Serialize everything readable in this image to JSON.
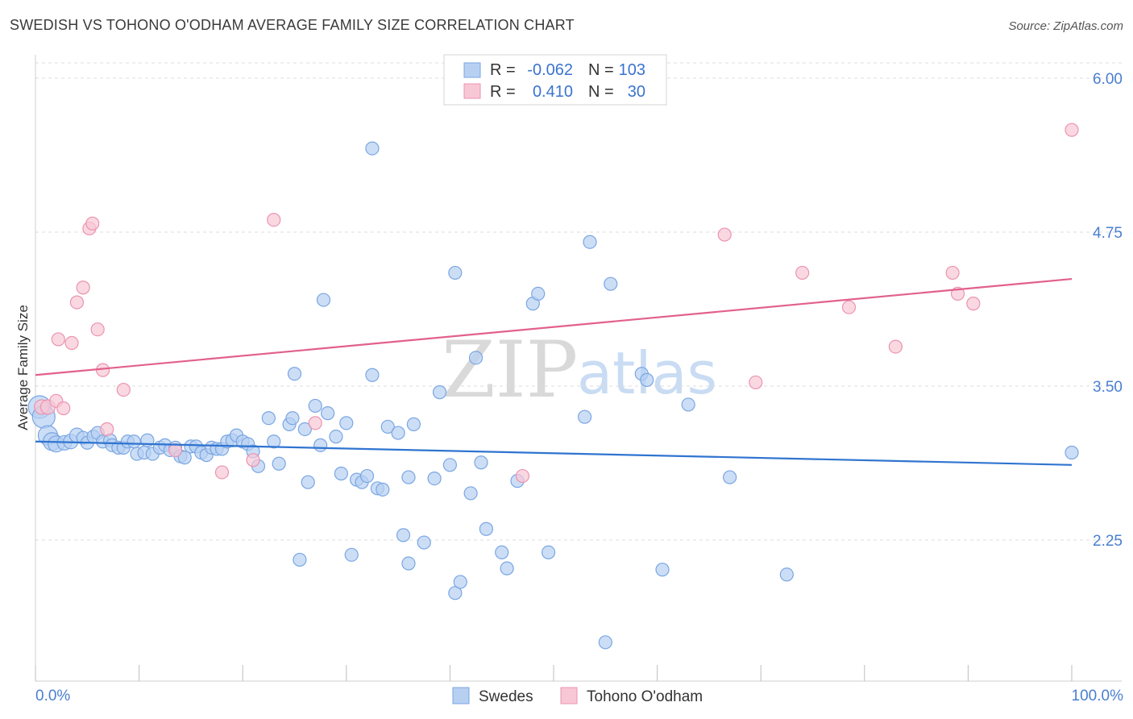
{
  "header": {
    "title": "SWEDISH VS TOHONO O'ODHAM AVERAGE FAMILY SIZE CORRELATION CHART",
    "source": "Source: ZipAtlas.com"
  },
  "colors": {
    "blue_fill": "#b7d0f2",
    "blue_stroke": "#7aa6e2",
    "blue_line": "#2f74d0",
    "pink_fill": "#f8c7d6",
    "pink_stroke": "#eb93b0",
    "pink_line": "#e2608d",
    "grid": "#dddddd",
    "tick_label": "#4a7fd0"
  },
  "legend": {
    "rows": [
      {
        "r_label": "R =",
        "r_value": "-0.062",
        "n_label": "N =",
        "n_value": "103",
        "color": "blue"
      },
      {
        "r_label": "R =",
        "r_value": "0.410",
        "n_label": "N =",
        "n_value": "30",
        "color": "pink"
      }
    ]
  },
  "bottom_legend": {
    "items": [
      {
        "label": "Swedes",
        "color": "blue"
      },
      {
        "label": "Tohono O'odham",
        "color": "pink"
      }
    ]
  },
  "watermark": {
    "zip": "ZIP",
    "atlas": "atlas"
  },
  "chart_data": {
    "type": "scatter",
    "title": "SWEDISH VS TOHONO O'ODHAM AVERAGE FAMILY SIZE CORRELATION CHART",
    "xlabel": "",
    "ylabel": "Average Family Size",
    "xlim": [
      0,
      100
    ],
    "ylim": [
      1.2,
      6.15
    ],
    "x_tick_labels": [
      "0.0%",
      "100.0%"
    ],
    "y_ticks": [
      2.25,
      3.5,
      4.75,
      6.0
    ],
    "y_tick_labels": [
      "2.25",
      "3.50",
      "4.75",
      "6.00"
    ],
    "grid": true,
    "series": [
      {
        "name": "Swedes",
        "color": "blue",
        "trend": {
          "x": [
            0,
            100
          ],
          "y": [
            3.05,
            2.86
          ]
        },
        "points": [
          {
            "x": 0.4,
            "y": 3.33,
            "s": 14
          },
          {
            "x": 0.8,
            "y": 3.25,
            "s": 14
          },
          {
            "x": 1.2,
            "y": 3.1,
            "s": 12
          },
          {
            "x": 1.6,
            "y": 3.05,
            "s": 11
          },
          {
            "x": 2.0,
            "y": 3.03,
            "s": 10
          },
          {
            "x": 2.8,
            "y": 3.04,
            "s": 9
          },
          {
            "x": 3.4,
            "y": 3.05,
            "s": 9
          },
          {
            "x": 4.0,
            "y": 3.1,
            "s": 9
          },
          {
            "x": 4.6,
            "y": 3.08,
            "s": 8
          },
          {
            "x": 5.0,
            "y": 3.04,
            "s": 8
          },
          {
            "x": 5.6,
            "y": 3.09,
            "s": 8
          },
          {
            "x": 6.0,
            "y": 3.12,
            "s": 8
          },
          {
            "x": 6.5,
            "y": 3.05,
            "s": 8
          },
          {
            "x": 7.2,
            "y": 3.06,
            "s": 8
          },
          {
            "x": 7.4,
            "y": 3.02,
            "s": 8
          },
          {
            "x": 8.0,
            "y": 3.0,
            "s": 8
          },
          {
            "x": 8.5,
            "y": 3.0,
            "s": 8
          },
          {
            "x": 8.9,
            "y": 3.05,
            "s": 8
          },
          {
            "x": 9.5,
            "y": 3.05,
            "s": 8
          },
          {
            "x": 9.8,
            "y": 2.95,
            "s": 8
          },
          {
            "x": 10.5,
            "y": 2.96,
            "s": 8
          },
          {
            "x": 10.8,
            "y": 3.06,
            "s": 8
          },
          {
            "x": 11.3,
            "y": 2.95,
            "s": 8
          },
          {
            "x": 12.0,
            "y": 3.0,
            "s": 8
          },
          {
            "x": 12.5,
            "y": 3.02,
            "s": 8
          },
          {
            "x": 13.0,
            "y": 2.98,
            "s": 8
          },
          {
            "x": 13.5,
            "y": 3.0,
            "s": 8
          },
          {
            "x": 14.0,
            "y": 2.93,
            "s": 8
          },
          {
            "x": 14.4,
            "y": 2.92,
            "s": 8
          },
          {
            "x": 15.0,
            "y": 3.01,
            "s": 8
          },
          {
            "x": 15.5,
            "y": 3.01,
            "s": 8
          },
          {
            "x": 16.0,
            "y": 2.96,
            "s": 8
          },
          {
            "x": 16.5,
            "y": 2.94,
            "s": 8
          },
          {
            "x": 17.0,
            "y": 3.0,
            "s": 8
          },
          {
            "x": 17.5,
            "y": 2.99,
            "s": 8
          },
          {
            "x": 18.0,
            "y": 2.99,
            "s": 8
          },
          {
            "x": 18.5,
            "y": 3.05,
            "s": 8
          },
          {
            "x": 19.0,
            "y": 3.06,
            "s": 8
          },
          {
            "x": 19.4,
            "y": 3.1,
            "s": 8
          },
          {
            "x": 20.0,
            "y": 3.05,
            "s": 8
          },
          {
            "x": 20.5,
            "y": 3.03,
            "s": 8
          },
          {
            "x": 21.0,
            "y": 2.97,
            "s": 8
          },
          {
            "x": 21.5,
            "y": 2.85,
            "s": 8
          },
          {
            "x": 22.5,
            "y": 3.24,
            "s": 8
          },
          {
            "x": 23.0,
            "y": 3.05,
            "s": 8
          },
          {
            "x": 23.5,
            "y": 2.87,
            "s": 8
          },
          {
            "x": 24.5,
            "y": 3.19,
            "s": 8
          },
          {
            "x": 24.8,
            "y": 3.24,
            "s": 8
          },
          {
            "x": 25.0,
            "y": 3.6,
            "s": 8
          },
          {
            "x": 25.5,
            "y": 2.09,
            "s": 8
          },
          {
            "x": 26.0,
            "y": 3.15,
            "s": 8
          },
          {
            "x": 26.3,
            "y": 2.72,
            "s": 8
          },
          {
            "x": 27.0,
            "y": 3.34,
            "s": 8
          },
          {
            "x": 27.5,
            "y": 3.02,
            "s": 8
          },
          {
            "x": 27.8,
            "y": 4.2,
            "s": 8
          },
          {
            "x": 28.2,
            "y": 3.28,
            "s": 8
          },
          {
            "x": 29.0,
            "y": 3.09,
            "s": 8
          },
          {
            "x": 29.5,
            "y": 2.79,
            "s": 8
          },
          {
            "x": 30.0,
            "y": 3.2,
            "s": 8
          },
          {
            "x": 30.5,
            "y": 2.13,
            "s": 8
          },
          {
            "x": 31.0,
            "y": 2.74,
            "s": 8
          },
          {
            "x": 31.5,
            "y": 2.72,
            "s": 8
          },
          {
            "x": 32.0,
            "y": 2.77,
            "s": 8
          },
          {
            "x": 32.5,
            "y": 3.59,
            "s": 8
          },
          {
            "x": 32.5,
            "y": 5.43,
            "s": 8
          },
          {
            "x": 33.0,
            "y": 2.67,
            "s": 8
          },
          {
            "x": 33.5,
            "y": 2.66,
            "s": 8
          },
          {
            "x": 34.0,
            "y": 3.17,
            "s": 8
          },
          {
            "x": 35.0,
            "y": 3.12,
            "s": 8
          },
          {
            "x": 35.5,
            "y": 2.29,
            "s": 8
          },
          {
            "x": 36.0,
            "y": 2.06,
            "s": 8
          },
          {
            "x": 36.0,
            "y": 2.76,
            "s": 8
          },
          {
            "x": 36.5,
            "y": 3.19,
            "s": 8
          },
          {
            "x": 37.5,
            "y": 2.23,
            "s": 8
          },
          {
            "x": 38.5,
            "y": 2.75,
            "s": 8
          },
          {
            "x": 39.0,
            "y": 3.45,
            "s": 8
          },
          {
            "x": 40.0,
            "y": 2.86,
            "s": 8
          },
          {
            "x": 40.5,
            "y": 4.42,
            "s": 8
          },
          {
            "x": 40.5,
            "y": 1.82,
            "s": 8
          },
          {
            "x": 41.0,
            "y": 1.91,
            "s": 8
          },
          {
            "x": 42.0,
            "y": 2.63,
            "s": 8
          },
          {
            "x": 42.5,
            "y": 3.73,
            "s": 8
          },
          {
            "x": 43.0,
            "y": 2.88,
            "s": 8
          },
          {
            "x": 43.5,
            "y": 2.34,
            "s": 8
          },
          {
            "x": 45.0,
            "y": 2.15,
            "s": 8
          },
          {
            "x": 45.5,
            "y": 2.02,
            "s": 8
          },
          {
            "x": 46.5,
            "y": 2.73,
            "s": 8
          },
          {
            "x": 48.0,
            "y": 4.17,
            "s": 8
          },
          {
            "x": 48.5,
            "y": 4.25,
            "s": 8
          },
          {
            "x": 49.5,
            "y": 2.15,
            "s": 8
          },
          {
            "x": 53.0,
            "y": 3.25,
            "s": 8
          },
          {
            "x": 53.5,
            "y": 4.67,
            "s": 8
          },
          {
            "x": 55.0,
            "y": 1.42,
            "s": 8
          },
          {
            "x": 55.5,
            "y": 4.33,
            "s": 8
          },
          {
            "x": 58.5,
            "y": 3.6,
            "s": 8
          },
          {
            "x": 59.0,
            "y": 3.55,
            "s": 8
          },
          {
            "x": 60.5,
            "y": 2.01,
            "s": 8
          },
          {
            "x": 63.0,
            "y": 3.35,
            "s": 8
          },
          {
            "x": 67.0,
            "y": 2.76,
            "s": 8
          },
          {
            "x": 72.5,
            "y": 1.97,
            "s": 8
          },
          {
            "x": 100.0,
            "y": 2.96,
            "s": 8
          }
        ]
      },
      {
        "name": "Tohono O'odham",
        "color": "pink",
        "trend": {
          "x": [
            0,
            100
          ],
          "y": [
            3.59,
            4.37
          ]
        },
        "points": [
          {
            "x": 0.6,
            "y": 3.33,
            "s": 9
          },
          {
            "x": 1.2,
            "y": 3.33,
            "s": 9
          },
          {
            "x": 2.0,
            "y": 3.38,
            "s": 8
          },
          {
            "x": 2.2,
            "y": 3.88,
            "s": 8
          },
          {
            "x": 2.7,
            "y": 3.32,
            "s": 8
          },
          {
            "x": 3.5,
            "y": 3.85,
            "s": 8
          },
          {
            "x": 4.0,
            "y": 4.18,
            "s": 8
          },
          {
            "x": 4.6,
            "y": 4.3,
            "s": 8
          },
          {
            "x": 5.2,
            "y": 4.78,
            "s": 8
          },
          {
            "x": 5.5,
            "y": 4.82,
            "s": 8
          },
          {
            "x": 6.0,
            "y": 3.96,
            "s": 8
          },
          {
            "x": 6.5,
            "y": 3.63,
            "s": 8
          },
          {
            "x": 6.9,
            "y": 3.15,
            "s": 8
          },
          {
            "x": 8.5,
            "y": 3.47,
            "s": 8
          },
          {
            "x": 13.5,
            "y": 2.98,
            "s": 8
          },
          {
            "x": 18.0,
            "y": 2.8,
            "s": 8
          },
          {
            "x": 21.0,
            "y": 2.9,
            "s": 8
          },
          {
            "x": 23.0,
            "y": 4.85,
            "s": 8
          },
          {
            "x": 27.0,
            "y": 3.2,
            "s": 8
          },
          {
            "x": 47.0,
            "y": 2.77,
            "s": 8
          },
          {
            "x": 66.5,
            "y": 4.73,
            "s": 8
          },
          {
            "x": 69.5,
            "y": 3.53,
            "s": 8
          },
          {
            "x": 74.0,
            "y": 4.42,
            "s": 8
          },
          {
            "x": 78.5,
            "y": 4.14,
            "s": 8
          },
          {
            "x": 83.0,
            "y": 3.82,
            "s": 8
          },
          {
            "x": 88.5,
            "y": 4.42,
            "s": 8
          },
          {
            "x": 89.0,
            "y": 4.25,
            "s": 8
          },
          {
            "x": 90.5,
            "y": 4.17,
            "s": 8
          },
          {
            "x": 100.0,
            "y": 5.58,
            "s": 8
          }
        ]
      }
    ]
  }
}
